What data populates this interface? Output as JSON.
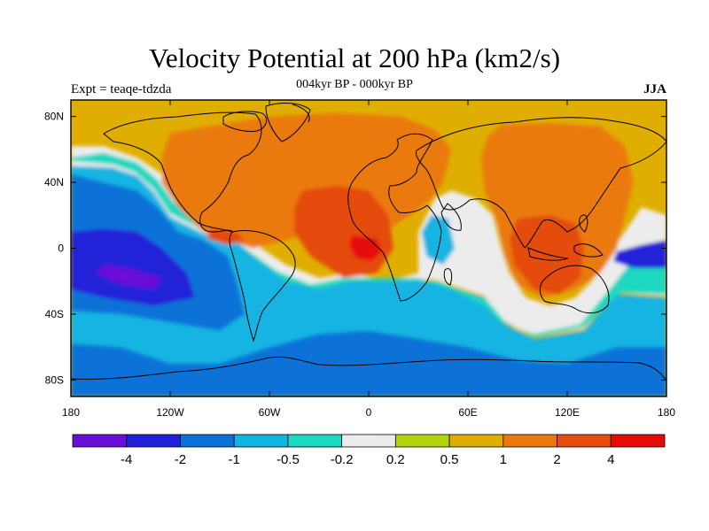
{
  "header": {
    "title": "Velocity Potential at 200 hPa (km2/s)",
    "subtitle": "004kyr BP - 000kyr BP",
    "left_label": "Expt = teaqe-tdzda",
    "right_label": "JJA"
  },
  "chart_data": {
    "type": "heatmap",
    "title": "Velocity Potential at 200 hPa (km2/s)",
    "subtitle": "004kyr BP - 000kyr BP",
    "xlabel": "",
    "ylabel": "",
    "xlim": [
      -180,
      180
    ],
    "ylim": [
      -90,
      90
    ],
    "x_ticks": [
      {
        "value": -180,
        "label": "180"
      },
      {
        "value": -120,
        "label": "120W"
      },
      {
        "value": -60,
        "label": "60W"
      },
      {
        "value": 0,
        "label": "0"
      },
      {
        "value": 60,
        "label": "60E"
      },
      {
        "value": 120,
        "label": "120E"
      },
      {
        "value": 180,
        "label": "180"
      }
    ],
    "y_ticks": [
      {
        "value": 80,
        "label": "80N"
      },
      {
        "value": 40,
        "label": "40N"
      },
      {
        "value": 0,
        "label": "0"
      },
      {
        "value": -40,
        "label": "40S"
      },
      {
        "value": -80,
        "label": "80S"
      }
    ],
    "colorbar": {
      "colors": [
        "#6a0fd8",
        "#2020d8",
        "#0a72d8",
        "#12b4e2",
        "#1cd8c0",
        "#ececec",
        "#b2d40a",
        "#e0ae00",
        "#ea7a10",
        "#e44c10",
        "#e80a0a"
      ],
      "labels": [
        "-4",
        "-2",
        "-1",
        "-0.5",
        "-0.2",
        "0.2",
        "0.5",
        "1",
        "2",
        "4"
      ]
    },
    "field": {
      "background": "#e0ae00",
      "regions": [
        {
          "level": 3,
          "polygon": [
            [
              -180,
              -90
            ],
            [
              180,
              -90
            ],
            [
              180,
              -30
            ],
            [
              150,
              -28
            ],
            [
              130,
              -50
            ],
            [
              100,
              -55
            ],
            [
              80,
              -45
            ],
            [
              70,
              -30
            ],
            [
              40,
              -20
            ],
            [
              20,
              -20
            ],
            [
              -10,
              -20
            ],
            [
              -30,
              -25
            ],
            [
              -50,
              -20
            ],
            [
              -70,
              -5
            ],
            [
              -80,
              5
            ],
            [
              -100,
              10
            ],
            [
              -120,
              20
            ],
            [
              -130,
              35
            ],
            [
              -140,
              45
            ],
            [
              -155,
              50
            ],
            [
              -180,
              52
            ]
          ]
        },
        {
          "level": 5,
          "polygon": [
            [
              -180,
              50
            ],
            [
              -155,
              49
            ],
            [
              -140,
              44
            ],
            [
              -130,
              34
            ],
            [
              -120,
              19
            ],
            [
              -100,
              9
            ],
            [
              -80,
              4
            ],
            [
              -70,
              -4
            ],
            [
              -50,
              -19
            ],
            [
              -30,
              -24
            ],
            [
              -10,
              -19
            ],
            [
              20,
              -19
            ],
            [
              40,
              -19
            ],
            [
              70,
              -29
            ],
            [
              80,
              -44
            ],
            [
              100,
              -54
            ],
            [
              130,
              -49
            ],
            [
              150,
              -27
            ],
            [
              180,
              -29
            ],
            [
              180,
              20
            ],
            [
              165,
              25
            ],
            [
              155,
              10
            ],
            [
              145,
              -5
            ],
            [
              135,
              -20
            ],
            [
              125,
              -30
            ],
            [
              110,
              -35
            ],
            [
              95,
              -30
            ],
            [
              85,
              -15
            ],
            [
              80,
              0
            ],
            [
              75,
              20
            ],
            [
              65,
              30
            ],
            [
              50,
              35
            ],
            [
              40,
              30
            ],
            [
              30,
              10
            ],
            [
              30,
              -15
            ],
            [
              10,
              -20
            ],
            [
              -10,
              -15
            ],
            [
              -30,
              -18
            ],
            [
              -50,
              -10
            ],
            [
              -65,
              0
            ],
            [
              -75,
              10
            ],
            [
              -90,
              20
            ],
            [
              -110,
              30
            ],
            [
              -125,
              45
            ],
            [
              -140,
              55
            ],
            [
              -160,
              62
            ],
            [
              -180,
              62
            ]
          ]
        },
        {
          "level": 4,
          "polygon": [
            [
              -180,
              55
            ],
            [
              -160,
              58
            ],
            [
              -140,
              52
            ],
            [
              -128,
              42
            ],
            [
              -118,
              28
            ],
            [
              -100,
              15
            ],
            [
              -85,
              8
            ],
            [
              -72,
              -2
            ],
            [
              -55,
              -14
            ],
            [
              -35,
              -22
            ],
            [
              -15,
              -18
            ],
            [
              10,
              -18
            ],
            [
              30,
              -18
            ],
            [
              50,
              -25
            ],
            [
              70,
              -35
            ],
            [
              80,
              -45
            ],
            [
              100,
              -52
            ],
            [
              128,
              -46
            ],
            [
              148,
              -22
            ],
            [
              165,
              0
            ],
            [
              180,
              5
            ],
            [
              180,
              -28
            ],
            [
              152,
              -27
            ],
            [
              130,
              -48
            ],
            [
              100,
              -54
            ],
            [
              82,
              -44
            ],
            [
              72,
              -32
            ],
            [
              42,
              -20
            ],
            [
              20,
              -20
            ],
            [
              -10,
              -20
            ],
            [
              -30,
              -25
            ],
            [
              -50,
              -20
            ],
            [
              -70,
              -5
            ],
            [
              -80,
              5
            ],
            [
              -100,
              11
            ],
            [
              -120,
              21
            ],
            [
              -130,
              36
            ],
            [
              -141,
              46
            ],
            [
              -155,
              51
            ],
            [
              -180,
              53
            ]
          ]
        },
        {
          "level": 2,
          "polygon": [
            [
              -180,
              -90
            ],
            [
              180,
              -90
            ],
            [
              180,
              -60
            ],
            [
              150,
              -60
            ],
            [
              120,
              -70
            ],
            [
              90,
              -68
            ],
            [
              60,
              -60
            ],
            [
              30,
              -55
            ],
            [
              0,
              -50
            ],
            [
              -30,
              -52
            ],
            [
              -60,
              -60
            ],
            [
              -90,
              -70
            ],
            [
              -120,
              -70
            ],
            [
              -150,
              -60
            ],
            [
              -180,
              -58
            ]
          ]
        },
        {
          "level": 2,
          "polygon": [
            [
              -180,
              45
            ],
            [
              -160,
              40
            ],
            [
              -140,
              35
            ],
            [
              -128,
              25
            ],
            [
              -115,
              10
            ],
            [
              -100,
              5
            ],
            [
              -85,
              -5
            ],
            [
              -80,
              -20
            ],
            [
              -75,
              -40
            ],
            [
              -90,
              -50
            ],
            [
              -120,
              -45
            ],
            [
              -150,
              -40
            ],
            [
              -180,
              -38
            ]
          ]
        },
        {
          "level": 1,
          "polygon": [
            [
              -180,
              10
            ],
            [
              -160,
              12
            ],
            [
              -140,
              10
            ],
            [
              -125,
              0
            ],
            [
              -110,
              -15
            ],
            [
              -105,
              -30
            ],
            [
              -130,
              -35
            ],
            [
              -160,
              -30
            ],
            [
              -180,
              -25
            ]
          ]
        },
        {
          "level": 0,
          "polygon": [
            [
              -160,
              -10
            ],
            [
              -145,
              -12
            ],
            [
              -125,
              -18
            ],
            [
              -130,
              -25
            ],
            [
              -150,
              -22
            ],
            [
              -165,
              -15
            ]
          ]
        },
        {
          "level": 1,
          "polygon": [
            [
              180,
              5
            ],
            [
              165,
              2
            ],
            [
              150,
              -2
            ],
            [
              148,
              -8
            ],
            [
              160,
              -12
            ],
            [
              180,
              -12
            ]
          ]
        },
        {
          "level": 3,
          "polygon": [
            [
              38,
              20
            ],
            [
              48,
              18
            ],
            [
              52,
              0
            ],
            [
              45,
              -10
            ],
            [
              35,
              -5
            ],
            [
              32,
              10
            ]
          ]
        },
        {
          "level": 3,
          "polygon": [
            [
              40,
              -30
            ],
            [
              55,
              -28
            ],
            [
              65,
              -40
            ],
            [
              55,
              -50
            ],
            [
              40,
              -48
            ],
            [
              35,
              -40
            ]
          ]
        },
        {
          "level": 8,
          "polygon": [
            [
              -120,
              70
            ],
            [
              -90,
              75
            ],
            [
              -60,
              80
            ],
            [
              -20,
              82
            ],
            [
              20,
              80
            ],
            [
              40,
              72
            ],
            [
              50,
              60
            ],
            [
              45,
              40
            ],
            [
              38,
              30
            ],
            [
              25,
              20
            ],
            [
              10,
              10
            ],
            [
              -10,
              5
            ],
            [
              -30,
              10
            ],
            [
              -50,
              5
            ],
            [
              -70,
              0
            ],
            [
              -85,
              5
            ],
            [
              -100,
              10
            ],
            [
              -115,
              25
            ],
            [
              -125,
              40
            ],
            [
              -125,
              55
            ]
          ]
        },
        {
          "level": 8,
          "polygon": [
            [
              80,
              75
            ],
            [
              110,
              76
            ],
            [
              140,
              74
            ],
            [
              155,
              62
            ],
            [
              160,
              40
            ],
            [
              155,
              20
            ],
            [
              150,
              0
            ],
            [
              140,
              -15
            ],
            [
              125,
              -25
            ],
            [
              105,
              -30
            ],
            [
              90,
              -22
            ],
            [
              82,
              -5
            ],
            [
              78,
              15
            ],
            [
              70,
              35
            ],
            [
              68,
              55
            ],
            [
              72,
              68
            ]
          ]
        },
        {
          "level": 9,
          "polygon": [
            [
              -40,
              35
            ],
            [
              -20,
              38
            ],
            [
              0,
              35
            ],
            [
              12,
              20
            ],
            [
              15,
              0
            ],
            [
              5,
              -15
            ],
            [
              -15,
              -18
            ],
            0,
            [
              -35,
              -5
            ],
            [
              -45,
              10
            ],
            [
              -45,
              25
            ]
          ]
        },
        {
          "level": 9,
          "polygon": [
            [
              90,
              18
            ],
            [
              110,
              20
            ],
            [
              125,
              15
            ],
            [
              130,
              0
            ],
            [
              128,
              -18
            ],
            [
              115,
              -28
            ],
            [
              100,
              -25
            ],
            [
              88,
              -10
            ],
            [
              85,
              5
            ]
          ]
        },
        {
          "level": 10,
          "polygon": [
            [
              -10,
              8
            ],
            [
              5,
              6
            ],
            [
              8,
              -2
            ],
            [
              2,
              -8
            ],
            [
              -8,
              -6
            ],
            [
              -12,
              2
            ]
          ]
        },
        {
          "level": 9,
          "polygon": [
            [
              -95,
              12
            ],
            [
              -80,
              10
            ],
            [
              -75,
              5
            ],
            [
              -85,
              2
            ],
            [
              -98,
              6
            ]
          ]
        }
      ]
    }
  }
}
